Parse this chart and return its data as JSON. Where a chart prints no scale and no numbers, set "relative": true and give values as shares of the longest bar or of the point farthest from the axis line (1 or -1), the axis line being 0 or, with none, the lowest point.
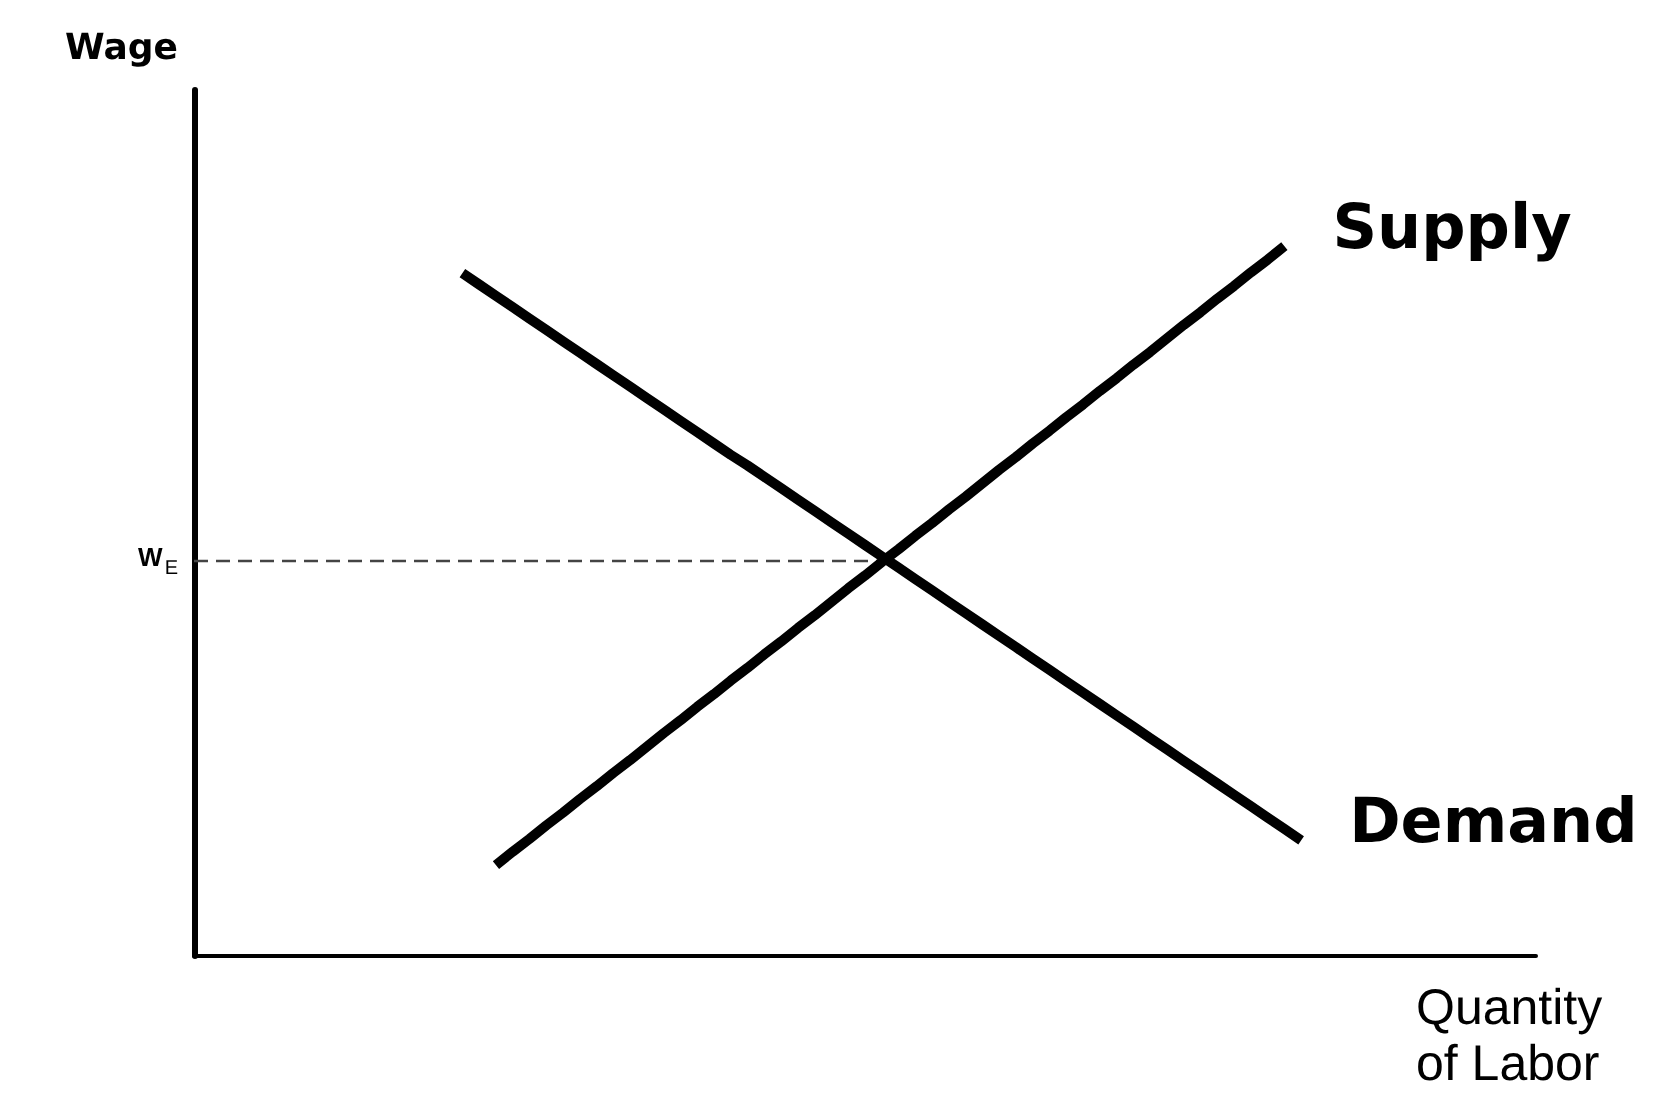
{
  "chart_data": {
    "type": "line",
    "relative": true,
    "xlabel": "Quantity of Labor",
    "ylabel": "Wage",
    "categories": [
      null,
      null,
      null,
      null,
      null,
      null,
      null,
      null,
      null,
      null,
      null,
      null,
      null,
      null,
      null,
      null,
      null,
      null,
      null,
      null,
      null,
      null,
      null,
      null,
      null,
      null,
      null,
      null,
      null,
      null,
      null,
      null,
      null,
      null,
      null,
      null,
      null,
      null,
      null,
      null,
      null,
      null,
      null,
      null,
      null,
      null,
      null,
      null,
      null,
      null,
      null,
      null,
      null,
      null,
      null,
      null,
      null,
      null,
      null,
      null,
      null,
      null,
      null,
      null,
      null,
      null,
      null,
      null,
      null,
      null,
      null,
      null,
      null,
      null,
      null,
      null,
      null,
      null,
      null,
      null,
      null
    ],
    "series": [
      {
        "name": "Demand",
        "color": "#000000",
        "values": [
          null,
          null,
          null,
          null,
          null,
          null,
          null,
          null,
          null,
          null,
          null,
          null,
          null,
          null,
          null,
          null,
          0.962,
          0.946,
          0.93,
          0.914,
          0.898,
          0.882,
          0.866,
          0.85,
          0.834,
          0.818,
          0.802,
          0.786,
          0.77,
          0.754,
          0.738,
          0.722,
          0.706,
          0.691,
          0.675,
          0.659,
          0.643,
          0.627,
          0.611,
          0.595,
          0.579,
          0.563,
          0.547,
          0.531,
          0.515,
          0.499,
          0.483,
          0.467,
          0.451,
          0.435,
          0.419,
          0.403,
          0.387,
          0.371,
          0.355,
          0.339,
          0.323,
          0.307,
          0.291,
          0.275,
          0.259,
          0.243,
          0.227,
          0.211,
          0.195,
          0.179,
          0.163,
          null,
          null,
          null,
          null,
          null,
          null,
          null,
          null,
          null,
          null,
          null,
          null,
          null,
          null
        ]
      },
      {
        "name": "Supply",
        "color": "#000000",
        "values": [
          null,
          null,
          null,
          null,
          null,
          null,
          null,
          null,
          null,
          null,
          null,
          null,
          null,
          null,
          null,
          null,
          null,
          null,
          0.128,
          0.147,
          0.165,
          0.184,
          0.202,
          0.221,
          0.239,
          0.258,
          0.276,
          0.295,
          0.314,
          0.332,
          0.351,
          0.369,
          0.388,
          0.406,
          0.425,
          0.443,
          0.462,
          0.48,
          0.499,
          0.518,
          0.536,
          0.555,
          0.573,
          0.592,
          0.61,
          0.629,
          0.647,
          0.666,
          0.685,
          0.703,
          0.722,
          0.74,
          0.759,
          0.777,
          0.796,
          0.814,
          0.833,
          0.851,
          0.87,
          0.889,
          0.907,
          0.926,
          0.944,
          0.963,
          0.981,
          1.0,
          null,
          null,
          null,
          null,
          null,
          null,
          null,
          null,
          null,
          null,
          null,
          null,
          null,
          null,
          null
        ]
      }
    ],
    "ref_lines": [
      {
        "axis": "y",
        "value": 0.558,
        "label": "W$_{E}$",
        "color": "#444444",
        "line_style": "dashed"
      }
    ]
  }
}
